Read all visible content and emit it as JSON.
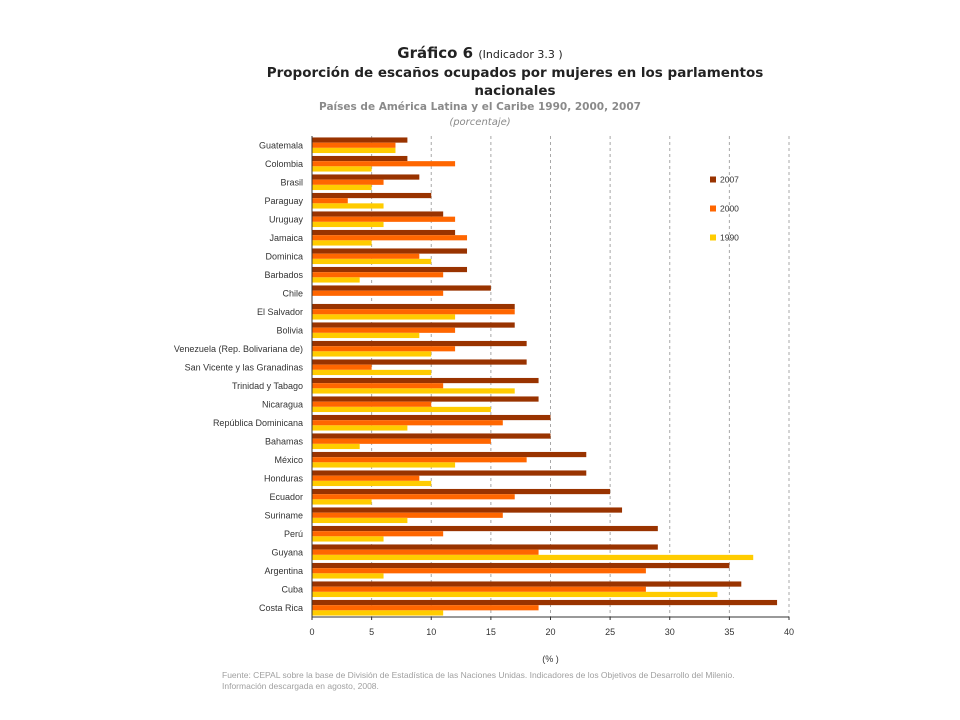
{
  "header": {
    "title": "Gráfico 6",
    "indicator": "(Indicador 3.3 )",
    "subtitle": "Proporción de escaños ocupados por mujeres en los parlamentos nacionales",
    "region": "Países de América Latina y el Caribe 1990, 2000, 2007",
    "unit": "(porcentaje)"
  },
  "footer": {
    "source_line1": "Fuente: CEPAL sobre la base de División de Estadística de las Naciones Unidas. Indicadores de los Objetivos de Desarrollo del Milenio.",
    "source_line2": "Información descargada en agosto, 2008."
  },
  "chart_data": {
    "type": "bar",
    "orientation": "horizontal",
    "categories": [
      "Guatemala",
      "Colombia",
      "Brasil",
      "Paraguay",
      "Uruguay",
      "Jamaica",
      "Dominica",
      "Barbados",
      "Chile",
      "El Salvador",
      "Bolivia",
      "Venezuela (Rep. Bolivariana de)",
      "San Vicente y las Granadinas",
      "Trinidad y Tabago",
      "Nicaragua",
      "República Dominicana",
      "Bahamas",
      "México",
      "Honduras",
      "Ecuador",
      "Suriname",
      "Perú",
      "Guyana",
      "Argentina",
      "Cuba",
      "Costa Rica"
    ],
    "series": [
      {
        "name": "2007",
        "color": "#993300",
        "values": [
          8,
          8,
          9,
          10,
          11,
          12,
          13,
          13,
          15,
          17,
          17,
          18,
          18,
          19,
          19,
          20,
          20,
          23,
          23,
          25,
          26,
          29,
          29,
          35,
          36,
          39
        ]
      },
      {
        "name": "2000",
        "color": "#ff6600",
        "values": [
          7,
          12,
          6,
          3,
          12,
          13,
          9,
          11,
          11,
          17,
          12,
          12,
          5,
          11,
          10,
          16,
          15,
          18,
          9,
          17,
          16,
          11,
          19,
          28,
          28,
          19
        ]
      },
      {
        "name": "1990",
        "color": "#ffcc00",
        "values": [
          7,
          5,
          5,
          6,
          6,
          5,
          10,
          4,
          0,
          12,
          9,
          10,
          10,
          17,
          15,
          8,
          4,
          12,
          10,
          5,
          8,
          6,
          37,
          6,
          34,
          11
        ]
      }
    ],
    "xlim": [
      0,
      40
    ],
    "xticks": [
      0,
      5,
      10,
      15,
      20,
      25,
      30,
      35,
      40
    ],
    "xlabel": "(% )",
    "grid": "vertical dashed",
    "legend": "top-right"
  }
}
